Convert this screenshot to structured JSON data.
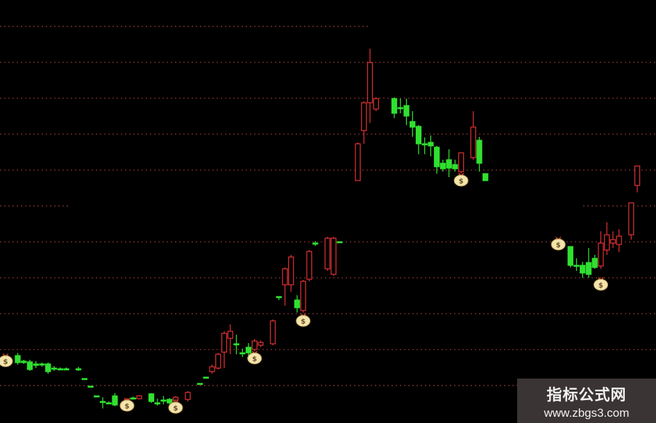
{
  "chart_data": {
    "type": "candlestick",
    "title": "",
    "xlabel": "",
    "ylabel": "",
    "grid": true,
    "background": "#000000",
    "colors": {
      "up": "#d83030",
      "down": "#30e030",
      "grid": "#7a2c2c",
      "signal": "#f3e4ae"
    },
    "candles_fields": [
      "t",
      "open",
      "close",
      "high",
      "low"
    ],
    "candles": [
      [
        2,
        8.8,
        7.8,
        9.2,
        7.5
      ],
      [
        3,
        8.0,
        7.8,
        8.2,
        7.6
      ],
      [
        4,
        7.9,
        6.8,
        8.2,
        6.6
      ],
      [
        5,
        7.6,
        7.4,
        8.0,
        7.0
      ],
      [
        6,
        7.6,
        7.5,
        7.8,
        7.2
      ],
      [
        7,
        7.6,
        6.5,
        7.8,
        6.2
      ],
      [
        8,
        7.0,
        7.0,
        7.3,
        6.6
      ],
      [
        9,
        6.9,
        6.9,
        7.1,
        6.7
      ],
      [
        10,
        6.9,
        6.9,
        7.1,
        6.7
      ],
      [
        12,
        6.9,
        6.9,
        7.2,
        6.6
      ],
      [
        13,
        5.5,
        5.5,
        5.5,
        5.5
      ],
      [
        14,
        4.4,
        4.4,
        4.4,
        4.4
      ],
      [
        15,
        3.0,
        3.0,
        3.0,
        3.0
      ],
      [
        16,
        2.2,
        2.1,
        2.8,
        1.2
      ],
      [
        17,
        2.0,
        2.0,
        2.2,
        1.8
      ],
      [
        18,
        3.0,
        1.7,
        3.4,
        1.5
      ],
      [
        20,
        2.3,
        2.5,
        2.7,
        2.1
      ],
      [
        21,
        2.7,
        2.7,
        2.9,
        2.5
      ],
      [
        22,
        2.6,
        3.0,
        3.1,
        2.5
      ],
      [
        24,
        3.3,
        2.2,
        3.4,
        2.0
      ],
      [
        25,
        2.0,
        2.0,
        2.6,
        1.6
      ],
      [
        26,
        2.4,
        2.4,
        3.0,
        1.8
      ],
      [
        27,
        2.5,
        2.0,
        2.7,
        1.8
      ],
      [
        28,
        2.4,
        2.8,
        3.0,
        2.0
      ],
      [
        30,
        2.5,
        3.5,
        3.7,
        2.2
      ],
      [
        32,
        4.8,
        4.8,
        4.8,
        4.8
      ],
      [
        33,
        5.7,
        5.7,
        5.7,
        5.7
      ],
      [
        34,
        6.5,
        7.2,
        7.5,
        6.2
      ],
      [
        35,
        7.0,
        9.0,
        9.2,
        6.8
      ],
      [
        36,
        9.3,
        12.0,
        12.3,
        7.0
      ],
      [
        37,
        11.3,
        12.3,
        13.3,
        9.0
      ],
      [
        38,
        10.5,
        10.5,
        11.8,
        9.0
      ],
      [
        39,
        9.2,
        9.2,
        9.8,
        8.6
      ],
      [
        40,
        10.0,
        9.2,
        10.6,
        8.4
      ],
      [
        41,
        9.7,
        10.9,
        11.2,
        9.4
      ],
      [
        42,
        10.3,
        10.7,
        11.0,
        10.0
      ],
      [
        44,
        10.5,
        13.8,
        14.0,
        10.3
      ],
      [
        45,
        17.3,
        17.3,
        17.3,
        16.8
      ],
      [
        46,
        19.0,
        21.3,
        21.5,
        16.0
      ],
      [
        47,
        19.0,
        23.0,
        23.3,
        18.0
      ],
      [
        48,
        16.8,
        15.7,
        17.5,
        15.0
      ],
      [
        49,
        15.3,
        19.5,
        19.7,
        15.0
      ],
      [
        50,
        19.8,
        23.8,
        24.0,
        19.5
      ],
      [
        51,
        25.0,
        25.0,
        25.3,
        24.6
      ],
      [
        53,
        21.3,
        25.7,
        25.9,
        21.0
      ],
      [
        54,
        20.5,
        25.7,
        25.9,
        20.3
      ],
      [
        55,
        25.2,
        25.2,
        25.2,
        25.2
      ],
      [
        58,
        34.0,
        39.3,
        39.5,
        34.0
      ],
      [
        59,
        41.2,
        45.2,
        45.4,
        39.3
      ],
      [
        60,
        45.2,
        51.0,
        53.0,
        42.3
      ],
      [
        61,
        44.3,
        45.8,
        46.0,
        44.0
      ],
      [
        64,
        45.8,
        43.7,
        46.0,
        43.0
      ],
      [
        65,
        44.5,
        44.5,
        45.8,
        43.7
      ],
      [
        66,
        44.8,
        43.3,
        45.8,
        42.0
      ],
      [
        67,
        42.5,
        41.7,
        44.0,
        40.3
      ],
      [
        68,
        41.8,
        39.3,
        42.0,
        37.8
      ],
      [
        69,
        39.3,
        39.3,
        40.2,
        37.8
      ],
      [
        70,
        39.5,
        39.0,
        40.5,
        37.5
      ],
      [
        71,
        38.8,
        36.0,
        39.0,
        35.0
      ],
      [
        72,
        36.5,
        35.7,
        37.0,
        35.3
      ],
      [
        73,
        37.0,
        35.8,
        38.5,
        34.5
      ],
      [
        74,
        36.3,
        35.7,
        37.0,
        35.3
      ],
      [
        75,
        35.3,
        38.0,
        38.0,
        35.0
      ],
      [
        77,
        37.3,
        41.7,
        44.0,
        37.0
      ],
      [
        78,
        39.8,
        36.5,
        40.3,
        35.3
      ],
      [
        79,
        35.0,
        34.0,
        35.0,
        34.0
      ],
      [
        93,
        24.5,
        21.8,
        24.5,
        21.5
      ],
      [
        94,
        21.8,
        21.8,
        22.8,
        21.0
      ],
      [
        95,
        21.8,
        20.7,
        22.3,
        20.0
      ],
      [
        96,
        22.2,
        20.5,
        24.3,
        20.0
      ],
      [
        97,
        22.8,
        21.5,
        23.3,
        21.3
      ],
      [
        98,
        21.7,
        25.0,
        26.7,
        21.3
      ],
      [
        99,
        24.0,
        26.2,
        28.0,
        23.3
      ],
      [
        100,
        25.0,
        25.5,
        26.7,
        24.3
      ],
      [
        101,
        24.8,
        26.0,
        27.0,
        23.7
      ],
      [
        103,
        26.2,
        30.8,
        30.8,
        25.5
      ],
      [
        104,
        33.3,
        36.1,
        36.1,
        32.3
      ]
    ],
    "signals": [
      [
        0,
        8.2
      ],
      [
        20,
        1.8
      ],
      [
        28,
        1.5
      ],
      [
        41,
        8.6
      ],
      [
        49,
        14.0
      ],
      [
        75,
        34.2
      ],
      [
        91,
        25.0
      ],
      [
        98,
        19.2
      ]
    ],
    "signal_icon": "money-bag-icon"
  },
  "watermark": {
    "title": "指标公式网",
    "url": "www.zbgs3.com"
  }
}
